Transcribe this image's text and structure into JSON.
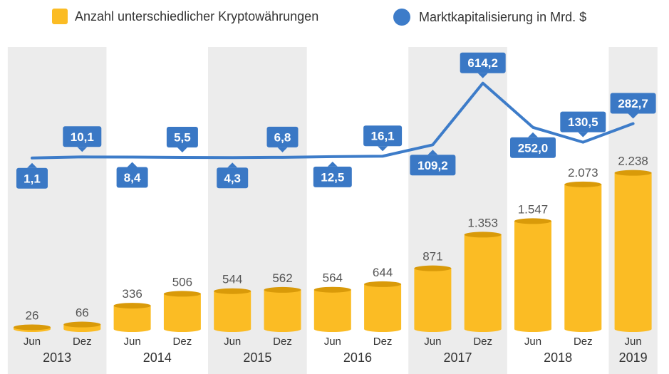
{
  "legend": {
    "bars_label": "Anzahl unterschiedlicher Kryptowährungen",
    "line_label": "Marktkapitalisierung in Mrd. $"
  },
  "colors": {
    "bar": "#fbbc24",
    "bar_top": "#d99a09",
    "line": "#3d7cc9",
    "label_bg": "#3a78c5",
    "band": "#ececec",
    "value_text": "#555555",
    "axis_text": "#333333"
  },
  "chart_data": {
    "type": "bar",
    "categories": [
      "Jun",
      "Dez",
      "Jun",
      "Dez",
      "Jun",
      "Dez",
      "Jun",
      "Dez",
      "Jun",
      "Dez",
      "Jun",
      "Dez",
      "Jun"
    ],
    "years": [
      {
        "label": "2013",
        "start": 0,
        "end": 1,
        "shaded": true
      },
      {
        "label": "2014",
        "start": 2,
        "end": 3,
        "shaded": false
      },
      {
        "label": "2015",
        "start": 4,
        "end": 5,
        "shaded": true
      },
      {
        "label": "2016",
        "start": 6,
        "end": 7,
        "shaded": false
      },
      {
        "label": "2017",
        "start": 8,
        "end": 9,
        "shaded": true
      },
      {
        "label": "2018",
        "start": 10,
        "end": 11,
        "shaded": false
      },
      {
        "label": "2019",
        "start": 12,
        "end": 12,
        "shaded": true
      }
    ],
    "series": [
      {
        "name": "Anzahl unterschiedlicher Kryptowährungen",
        "type": "bar",
        "values": [
          26,
          66,
          336,
          506,
          544,
          562,
          564,
          644,
          871,
          1353,
          1547,
          2073,
          2238
        ],
        "labels": [
          "26",
          "66",
          "336",
          "506",
          "544",
          "562",
          "564",
          "644",
          "871",
          "1.353",
          "1.547",
          "2.073",
          "2.238"
        ]
      },
      {
        "name": "Marktkapitalisierung in Mrd. $",
        "type": "line",
        "values": [
          1.1,
          10.1,
          8.4,
          5.5,
          4.3,
          6.8,
          12.5,
          16.1,
          109.2,
          614.2,
          252.0,
          130.5,
          282.7
        ],
        "labels": [
          "1,1",
          "10,1",
          "8,4",
          "5,5",
          "4,3",
          "6,8",
          "12,5",
          "16,1",
          "109,2",
          "614,2",
          "252,0",
          "130,5",
          "282,7"
        ],
        "label_position": [
          "below",
          "above",
          "below",
          "above",
          "below",
          "above",
          "below",
          "above",
          "below",
          "above",
          "below",
          "above",
          "above"
        ]
      }
    ],
    "ylim_bars": [
      0,
      2500
    ],
    "ylim_line": [
      0,
      700
    ],
    "grid": false,
    "legend_position": "top"
  }
}
